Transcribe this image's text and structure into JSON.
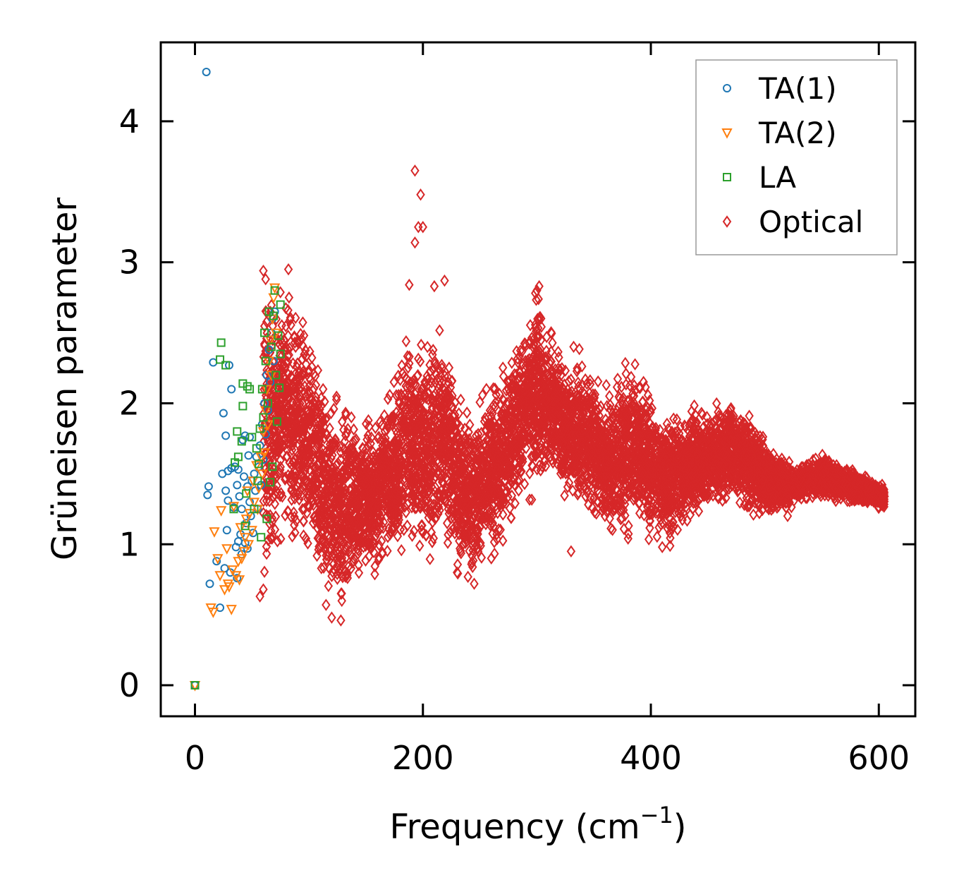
{
  "chart_data": {
    "type": "scatter",
    "title": "",
    "xlabel": "Frequency (cm",
    "xlabel_sup": "−1",
    "xlabel_close": ")",
    "ylabel": "Grüneisen parameter",
    "xlim": [
      -30,
      632
    ],
    "ylim": [
      -0.22,
      4.56
    ],
    "xticks": [
      0,
      200,
      400,
      600
    ],
    "yticks": [
      0,
      1,
      2,
      3,
      4
    ],
    "xtick_labels": [
      "0",
      "200",
      "400",
      "600"
    ],
    "ytick_labels": [
      "0",
      "1",
      "2",
      "3",
      "4"
    ],
    "grid": false,
    "legend_position": "top-right",
    "series": [
      {
        "name": "TA(1)",
        "color": "#1f77b4",
        "marker": "circle",
        "points": [
          [
            0,
            0
          ],
          [
            10,
            4.35
          ],
          [
            12,
            1.41
          ],
          [
            11,
            1.35
          ],
          [
            13,
            0.72
          ],
          [
            16,
            2.29
          ],
          [
            19,
            0.88
          ],
          [
            22,
            0.55
          ],
          [
            24,
            1.5
          ],
          [
            25,
            1.93
          ],
          [
            26,
            0.83
          ],
          [
            27,
            1.77
          ],
          [
            27,
            1.38
          ],
          [
            28,
            1.1
          ],
          [
            29,
            1.52
          ],
          [
            29,
            1.31
          ],
          [
            30,
            2.27
          ],
          [
            31,
            0.8
          ],
          [
            32,
            1.54
          ],
          [
            32,
            2.1
          ],
          [
            34,
            1.26
          ],
          [
            35,
            1.55
          ],
          [
            36,
            0.98
          ],
          [
            37,
            0.76
          ],
          [
            37,
            1.42
          ],
          [
            38,
            1.02
          ],
          [
            38,
            1.53
          ],
          [
            39,
            1.34
          ],
          [
            40,
            1.07
          ],
          [
            41,
            0.93
          ],
          [
            41,
            1.25
          ],
          [
            42,
            1.74
          ],
          [
            43,
            1.48
          ],
          [
            44,
            1.01
          ],
          [
            44,
            1.77
          ],
          [
            45,
            1.15
          ],
          [
            46,
            0.97
          ],
          [
            46,
            1.41
          ],
          [
            47,
            1.63
          ],
          [
            48,
            1.3
          ],
          [
            48,
            1.76
          ],
          [
            49,
            1.2
          ],
          [
            50,
            1.45
          ],
          [
            51,
            1.08
          ],
          [
            52,
            1.5
          ],
          [
            53,
            1.38
          ],
          [
            54,
            1.62
          ],
          [
            55,
            1.25
          ],
          [
            56,
            1.55
          ],
          [
            57,
            1.7
          ],
          [
            58,
            1.42
          ],
          [
            59,
            1.85
          ],
          [
            60,
            1.6
          ],
          [
            61,
            2.0
          ],
          [
            62,
            1.78
          ],
          [
            63,
            2.2
          ],
          [
            64,
            1.95
          ],
          [
            65,
            2.38
          ],
          [
            66,
            2.15
          ],
          [
            67,
            2.5
          ],
          [
            68,
            2.6
          ],
          [
            69,
            2.3
          ],
          [
            70,
            2.65
          ]
        ]
      },
      {
        "name": "TA(2)",
        "color": "#ff7f0e",
        "marker": "triangle-down",
        "points": [
          [
            0,
            0
          ],
          [
            14,
            0.55
          ],
          [
            16,
            0.52
          ],
          [
            17,
            1.09
          ],
          [
            20,
            0.9
          ],
          [
            22,
            0.78
          ],
          [
            23,
            1.24
          ],
          [
            26,
            0.68
          ],
          [
            28,
            0.97
          ],
          [
            29,
            0.72
          ],
          [
            30,
            0.7
          ],
          [
            32,
            0.54
          ],
          [
            33,
            0.82
          ],
          [
            34,
            1.27
          ],
          [
            36,
            0.78
          ],
          [
            38,
            0.88
          ],
          [
            39,
            0.75
          ],
          [
            40,
            1.12
          ],
          [
            41,
            0.9
          ],
          [
            43,
            0.95
          ],
          [
            44,
            1.05
          ],
          [
            45,
            1.18
          ],
          [
            46,
            1.38
          ],
          [
            47,
            1.0
          ],
          [
            48,
            1.22
          ],
          [
            50,
            1.1
          ],
          [
            51,
            1.45
          ],
          [
            52,
            1.3
          ],
          [
            54,
            1.56
          ],
          [
            55,
            1.25
          ],
          [
            56,
            1.4
          ],
          [
            58,
            1.62
          ],
          [
            59,
            1.5
          ],
          [
            60,
            1.8
          ],
          [
            61,
            1.65
          ],
          [
            62,
            1.95
          ],
          [
            63,
            2.1
          ],
          [
            64,
            1.85
          ],
          [
            65,
            2.3
          ],
          [
            66,
            2.45
          ],
          [
            67,
            2.2
          ],
          [
            68,
            2.6
          ],
          [
            69,
            2.75
          ],
          [
            70,
            2.82
          ],
          [
            71,
            2.5
          ]
        ]
      },
      {
        "name": "LA",
        "color": "#2ca02c",
        "marker": "square",
        "points": [
          [
            0,
            0
          ],
          [
            22,
            2.31
          ],
          [
            23,
            2.43
          ],
          [
            27,
            2.27
          ],
          [
            34,
            1.25
          ],
          [
            35,
            1.58
          ],
          [
            37,
            1.8
          ],
          [
            38,
            1.62
          ],
          [
            41,
            1.73
          ],
          [
            42,
            1.98
          ],
          [
            42,
            2.14
          ],
          [
            44,
            1.13
          ],
          [
            45,
            1.36
          ],
          [
            46,
            2.12
          ],
          [
            48,
            2.1
          ],
          [
            50,
            1.76
          ],
          [
            52,
            1.25
          ],
          [
            54,
            1.68
          ],
          [
            55,
            1.45
          ],
          [
            56,
            1.57
          ],
          [
            57,
            1.82
          ],
          [
            58,
            1.05
          ],
          [
            59,
            2.1
          ],
          [
            60,
            1.9
          ],
          [
            61,
            2.5
          ],
          [
            62,
            2.3
          ],
          [
            63,
            1.18
          ],
          [
            64,
            2.0
          ],
          [
            65,
            2.65
          ],
          [
            66,
            1.44
          ],
          [
            67,
            2.4
          ],
          [
            68,
            1.55
          ],
          [
            69,
            2.62
          ],
          [
            70,
            2.8
          ],
          [
            71,
            2.2
          ],
          [
            72,
            1.87
          ],
          [
            73,
            2.48
          ],
          [
            74,
            2.11
          ],
          [
            75,
            2.7
          ],
          [
            75,
            2.35
          ]
        ]
      },
      {
        "name": "Optical",
        "color": "#d62728",
        "marker": "diamond",
        "envelope": [
          [
            60,
            0.62,
            2.94
          ],
          [
            70,
            0.9,
            2.8
          ],
          [
            80,
            1.1,
            2.92
          ],
          [
            90,
            1.0,
            2.65
          ],
          [
            100,
            0.85,
            2.5
          ],
          [
            110,
            0.6,
            2.3
          ],
          [
            120,
            0.5,
            2.1
          ],
          [
            128,
            0.45,
            2.0
          ],
          [
            135,
            0.55,
            2.05
          ],
          [
            145,
            0.7,
            1.95
          ],
          [
            160,
            0.8,
            1.9
          ],
          [
            175,
            0.9,
            2.2
          ],
          [
            185,
            1.0,
            2.5
          ],
          [
            195,
            0.95,
            2.4
          ],
          [
            205,
            0.8,
            2.45
          ],
          [
            215,
            1.0,
            2.6
          ],
          [
            222,
            0.85,
            2.5
          ],
          [
            235,
            0.75,
            2.0
          ],
          [
            245,
            0.7,
            1.95
          ],
          [
            255,
            0.85,
            2.1
          ],
          [
            270,
            1.0,
            2.25
          ],
          [
            285,
            1.3,
            2.5
          ],
          [
            300,
            1.4,
            2.8
          ],
          [
            315,
            1.35,
            2.5
          ],
          [
            330,
            1.3,
            2.35
          ],
          [
            345,
            1.2,
            2.3
          ],
          [
            360,
            1.1,
            2.1
          ],
          [
            375,
            1.0,
            2.3
          ],
          [
            390,
            1.1,
            2.25
          ],
          [
            410,
            0.98,
            1.9
          ],
          [
            430,
            1.1,
            2.0
          ],
          [
            450,
            1.25,
            1.95
          ],
          [
            470,
            1.3,
            2.05
          ],
          [
            490,
            1.2,
            1.9
          ],
          [
            510,
            1.2,
            1.65
          ],
          [
            530,
            1.3,
            1.55
          ],
          [
            550,
            1.32,
            1.65
          ],
          [
            570,
            1.3,
            1.55
          ],
          [
            590,
            1.27,
            1.48
          ],
          [
            605,
            1.25,
            1.42
          ]
        ],
        "outliers": [
          [
            193,
            3.65
          ],
          [
            198,
            3.48
          ],
          [
            196,
            3.25
          ],
          [
            200,
            3.25
          ],
          [
            193,
            3.14
          ],
          [
            60,
            2.94
          ],
          [
            62,
            2.88
          ],
          [
            302,
            2.83
          ],
          [
            300,
            2.8
          ],
          [
            188,
            2.84
          ],
          [
            210,
            2.83
          ],
          [
            219,
            2.87
          ],
          [
            82,
            2.95
          ],
          [
            128,
            0.46
          ],
          [
            120,
            0.48
          ],
          [
            115,
            0.57
          ],
          [
            410,
            0.98
          ],
          [
            380,
            1.04
          ],
          [
            330,
            0.95
          ],
          [
            57,
            0.63
          ],
          [
            60,
            0.68
          ],
          [
            245,
            0.72
          ],
          [
            520,
            1.2
          ],
          [
            490,
            1.21
          ],
          [
            230,
            0.8
          ],
          [
            260,
            0.9
          ]
        ]
      }
    ]
  }
}
